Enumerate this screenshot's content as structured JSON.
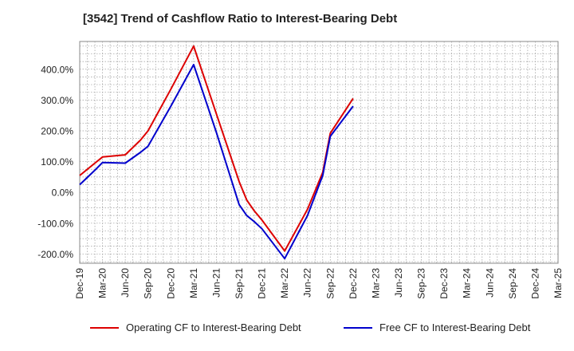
{
  "chart_data": {
    "type": "line",
    "title": "[3542]  Trend of Cashflow Ratio to Interest-Bearing Debt",
    "x_ticks": [
      "Dec-19",
      "Mar-20",
      "Jun-20",
      "Sep-20",
      "Dec-20",
      "Mar-21",
      "Jun-21",
      "Sep-21",
      "Dec-21",
      "Mar-22",
      "Jun-22",
      "Sep-22",
      "Dec-22",
      "Mar-23",
      "Jun-23",
      "Sep-23",
      "Dec-23",
      "Mar-24",
      "Jun-24",
      "Sep-24",
      "Dec-24",
      "Mar-25"
    ],
    "x": [
      "Dec-19",
      "Feb-20",
      "Mar-20",
      "Jun-20",
      "Aug-20",
      "Sep-20",
      "Dec-20",
      "Mar-21",
      "Jun-21",
      "Sep-21",
      "Oct-21",
      "Nov-21",
      "Dec-21",
      "Mar-22",
      "Jun-22",
      "Aug-22",
      "Sep-22",
      "Dec-22"
    ],
    "series": [
      {
        "name": "Operating CF to Interest-Bearing Debt",
        "color": "#dd0000",
        "values": [
          55,
          95,
          115,
          122,
          170,
          200,
          335,
          475,
          255,
          35,
          -25,
          -60,
          -90,
          -190,
          -55,
          65,
          192,
          305
        ]
      },
      {
        "name": "Free CF to Interest-Bearing Debt",
        "color": "#0000cc",
        "values": [
          25,
          72,
          97,
          95,
          130,
          150,
          280,
          415,
          195,
          -40,
          -75,
          -95,
          -118,
          -215,
          -75,
          55,
          182,
          280
        ]
      }
    ],
    "y_ticks": [
      -200,
      -100,
      0,
      100,
      200,
      300,
      400
    ],
    "y_tick_labels": [
      "-200.0%",
      "-100.0%",
      "0.0%",
      "100.0%",
      "200.0%",
      "300.0%",
      "400.0%"
    ],
    "ylim": [
      -230,
      490
    ],
    "grid": true,
    "legend": "bottom"
  }
}
